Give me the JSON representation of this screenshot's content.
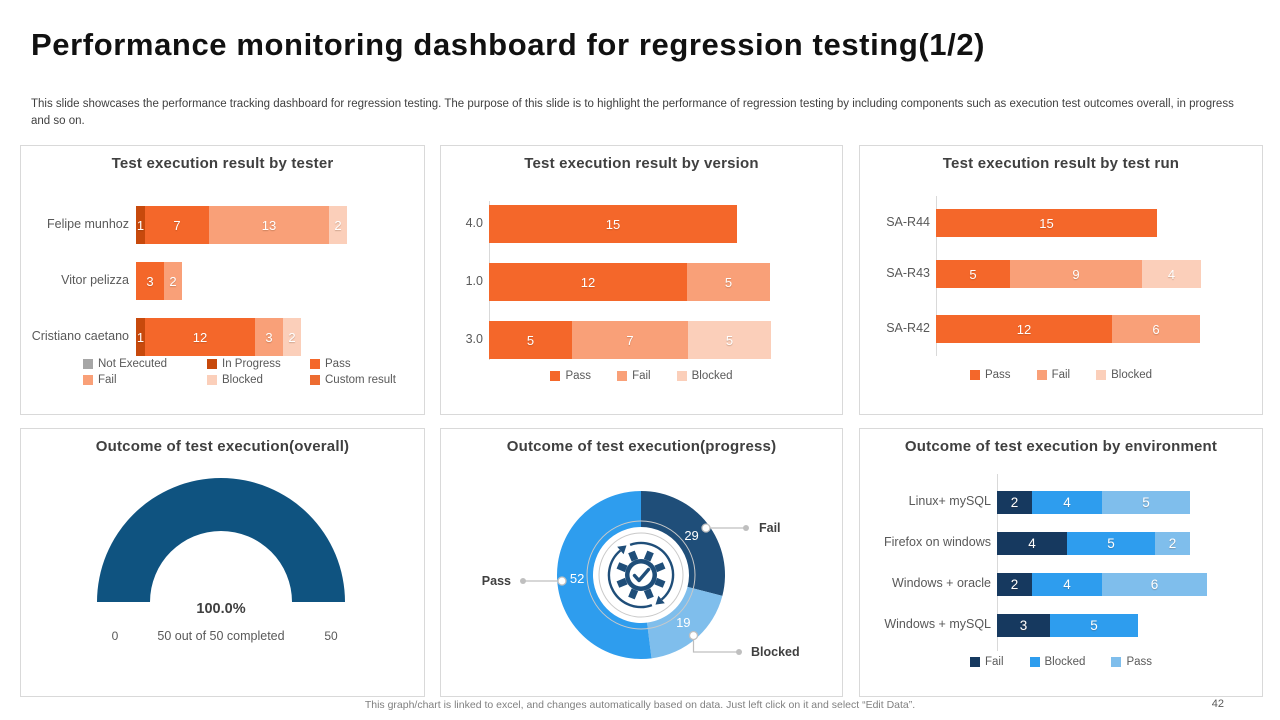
{
  "page": {
    "title": "Performance monitoring dashboard for regression testing(1/2)",
    "subtitle": "This slide showcases the performance tracking dashboard for regression testing. The purpose of this slide is to highlight the performance of regression testing by including components such as execution test outcomes overall, in progress and so on.",
    "footer": "This graph/chart is linked to excel, and changes automatically based on data. Just left click on it and select “Edit Data”.",
    "page_number": "42"
  },
  "chart_data": [
    {
      "id": "by_tester",
      "type": "bar",
      "orientation": "horizontal",
      "stacked": true,
      "title": "Test execution result by tester",
      "categories": [
        "Felipe munhoz",
        "Vitor pelizza",
        "Cristiano caetano"
      ],
      "series": [
        {
          "name": "Not Executed",
          "color": "#A6A6A6",
          "values": [
            0,
            0,
            0
          ]
        },
        {
          "name": "In Progress",
          "color": "#C7490C",
          "values": [
            1,
            0,
            1
          ]
        },
        {
          "name": "Pass",
          "color": "#F4672A",
          "values": [
            7,
            3,
            12
          ]
        },
        {
          "name": "Fail",
          "color": "#F9A078",
          "values": [
            13,
            2,
            3
          ]
        },
        {
          "name": "Blocked",
          "color": "#FBCFBA",
          "values": [
            2,
            0,
            2
          ]
        },
        {
          "name": "Custom result",
          "color": "#ED6C31",
          "values": [
            0,
            0,
            0
          ]
        }
      ],
      "legend": [
        [
          "Not Executed",
          "In Progress",
          "Pass"
        ],
        [
          "Fail",
          "Blocked",
          "Custom result"
        ]
      ]
    },
    {
      "id": "by_version",
      "type": "bar",
      "orientation": "horizontal",
      "stacked": true,
      "title": "Test execution result by version",
      "categories": [
        "4.0",
        "1.0",
        "3.0"
      ],
      "series": [
        {
          "name": "Pass",
          "color": "#F4672A",
          "values": [
            15,
            12,
            5
          ]
        },
        {
          "name": "Fail",
          "color": "#F9A078",
          "values": [
            0,
            5,
            7
          ]
        },
        {
          "name": "Blocked",
          "color": "#FBCFBA",
          "values": [
            0,
            0,
            5
          ]
        }
      ],
      "legend": [
        [
          "Pass",
          "Fail",
          "Blocked"
        ]
      ]
    },
    {
      "id": "by_test_run",
      "type": "bar",
      "orientation": "horizontal",
      "stacked": true,
      "title": "Test execution result by test run",
      "categories": [
        "SA-R44",
        "SA-R43",
        "SA-R42"
      ],
      "series": [
        {
          "name": "Pass",
          "color": "#F4672A",
          "values": [
            15,
            5,
            12
          ]
        },
        {
          "name": "Fail",
          "color": "#F9A078",
          "values": [
            0,
            9,
            6
          ]
        },
        {
          "name": "Blocked",
          "color": "#FBCFBA",
          "values": [
            0,
            4,
            0
          ]
        }
      ],
      "legend": [
        [
          "Pass",
          "Fail",
          "Blocked"
        ]
      ]
    },
    {
      "id": "overall_gauge",
      "type": "gauge",
      "title": "Outcome of test execution(overall)",
      "percent_label": "100.0%",
      "value": 50,
      "max": 50,
      "min_label": "0",
      "max_label": "50",
      "caption": "50 out of 50 completed",
      "color": "#0F5380"
    },
    {
      "id": "progress_donut",
      "type": "donut",
      "title": "Outcome of test execution(progress)",
      "start_angle_deg": 0,
      "clockwise": true,
      "slices": [
        {
          "label": "Fail",
          "value": 29,
          "color": "#1F4E79"
        },
        {
          "label": "Blocked",
          "value": 19,
          "color": "#7FBEEC"
        },
        {
          "label": "Pass",
          "value": 52,
          "color": "#2E9DEE"
        }
      ],
      "center_icon": "gear-check-refresh-icon"
    },
    {
      "id": "by_environment",
      "type": "bar",
      "orientation": "horizontal",
      "stacked": true,
      "title": "Outcome of test execution by environment",
      "categories": [
        "Linux+ mySQL",
        "Firefox on windows",
        "Windows + oracle",
        "Windows + mySQL"
      ],
      "series": [
        {
          "name": "Fail",
          "color": "#16395F",
          "values": [
            2,
            4,
            2,
            3
          ]
        },
        {
          "name": "Blocked",
          "color": "#2E9DEE",
          "values": [
            4,
            5,
            4,
            5
          ]
        },
        {
          "name": "Pass",
          "color": "#7FBEEC",
          "values": [
            5,
            2,
            6,
            0
          ]
        }
      ],
      "legend": [
        [
          "Fail",
          "Blocked",
          "Pass"
        ]
      ]
    }
  ]
}
